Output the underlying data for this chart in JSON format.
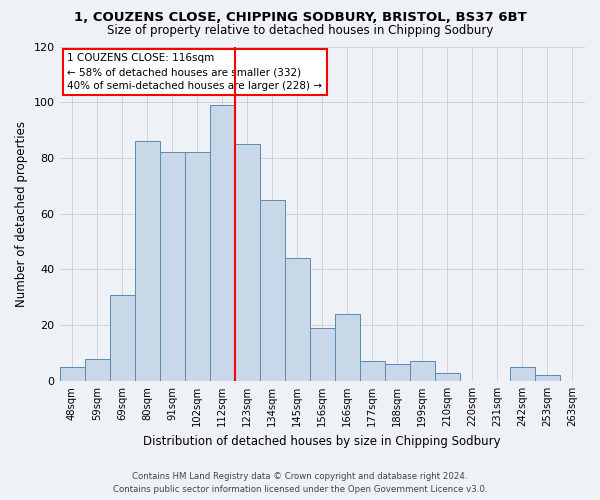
{
  "title": "1, COUZENS CLOSE, CHIPPING SODBURY, BRISTOL, BS37 6BT",
  "subtitle": "Size of property relative to detached houses in Chipping Sodbury",
  "xlabel": "Distribution of detached houses by size in Chipping Sodbury",
  "ylabel": "Number of detached properties",
  "bar_labels": [
    "48sqm",
    "59sqm",
    "69sqm",
    "80sqm",
    "91sqm",
    "102sqm",
    "112sqm",
    "123sqm",
    "134sqm",
    "145sqm",
    "156sqm",
    "166sqm",
    "177sqm",
    "188sqm",
    "199sqm",
    "210sqm",
    "220sqm",
    "231sqm",
    "242sqm",
    "253sqm",
    "263sqm"
  ],
  "bar_values": [
    5,
    8,
    31,
    86,
    82,
    82,
    99,
    85,
    65,
    44,
    19,
    24,
    7,
    6,
    7,
    3,
    0,
    0,
    5,
    2,
    0
  ],
  "bar_color": "#c8d8e8",
  "bar_edge_color": "#5a8ab0",
  "reference_line_color": "red",
  "ylim": [
    0,
    120
  ],
  "yticks": [
    0,
    20,
    40,
    60,
    80,
    100,
    120
  ],
  "annotation_title": "1 COUZENS CLOSE: 116sqm",
  "annotation_line1": "← 58% of detached houses are smaller (332)",
  "annotation_line2": "40% of semi-detached houses are larger (228) →",
  "footer_line1": "Contains HM Land Registry data © Crown copyright and database right 2024.",
  "footer_line2": "Contains public sector information licensed under the Open Government Licence v3.0.",
  "bg_color": "#eef2f7",
  "plot_bg_color": "#eef2f7"
}
